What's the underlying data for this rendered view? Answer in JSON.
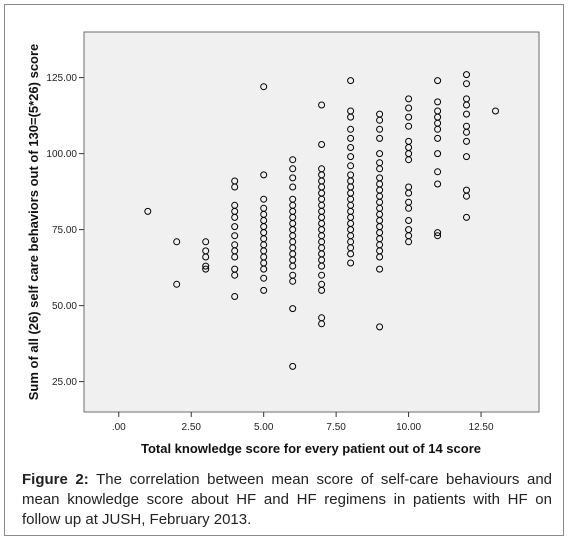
{
  "caption": {
    "label": "Figure 2:",
    "text": " The correlation between mean score of self-care behaviours and mean knowledge score about HF and HF regimens in patients with HF on follow up at JUSH, February 2013."
  },
  "colors": {
    "plot_background": "#f0f0f0",
    "marker": "#000000",
    "frame": "#8a8a8a"
  },
  "chart_data": {
    "type": "scatter",
    "title": "",
    "xlabel": "Total knowledge score for every patient out of 14 score",
    "ylabel": "Sum of all (26) self care behaviors out of 130=(5*26) score",
    "xlim": [
      -1.2,
      14.5
    ],
    "ylim": [
      15,
      140
    ],
    "x_ticks": [
      0,
      2.5,
      5,
      7.5,
      10,
      12.5
    ],
    "x_tick_labels": [
      ".00",
      "2.50",
      "5.00",
      "7.50",
      "10.00",
      "12.50"
    ],
    "y_ticks": [
      25,
      50,
      75,
      100,
      125
    ],
    "y_tick_labels": [
      "25.00",
      "50.00",
      "75.00",
      "100.00",
      "125.00"
    ],
    "grid": false,
    "marker": "open-circle",
    "points": [
      [
        1,
        81
      ],
      [
        2,
        71
      ],
      [
        2,
        57
      ],
      [
        3,
        71
      ],
      [
        3,
        68
      ],
      [
        3,
        66
      ],
      [
        3,
        63
      ],
      [
        3,
        62
      ],
      [
        4,
        91
      ],
      [
        4,
        89
      ],
      [
        4,
        83
      ],
      [
        4,
        81
      ],
      [
        4,
        79
      ],
      [
        4,
        76
      ],
      [
        4,
        73
      ],
      [
        4,
        70
      ],
      [
        4,
        68
      ],
      [
        4,
        66
      ],
      [
        4,
        62
      ],
      [
        4,
        60
      ],
      [
        4,
        53
      ],
      [
        5,
        122
      ],
      [
        5,
        93
      ],
      [
        5,
        85
      ],
      [
        5,
        82
      ],
      [
        5,
        80
      ],
      [
        5,
        78
      ],
      [
        5,
        76
      ],
      [
        5,
        74
      ],
      [
        5,
        72
      ],
      [
        5,
        70
      ],
      [
        5,
        68
      ],
      [
        5,
        66
      ],
      [
        5,
        64
      ],
      [
        5,
        62
      ],
      [
        5,
        59
      ],
      [
        5,
        55
      ],
      [
        6,
        98
      ],
      [
        6,
        95
      ],
      [
        6,
        92
      ],
      [
        6,
        89
      ],
      [
        6,
        85
      ],
      [
        6,
        83
      ],
      [
        6,
        81
      ],
      [
        6,
        79
      ],
      [
        6,
        77
      ],
      [
        6,
        75
      ],
      [
        6,
        73
      ],
      [
        6,
        71
      ],
      [
        6,
        69
      ],
      [
        6,
        67
      ],
      [
        6,
        65
      ],
      [
        6,
        63
      ],
      [
        6,
        60
      ],
      [
        6,
        58
      ],
      [
        6,
        49
      ],
      [
        6,
        30
      ],
      [
        7,
        116
      ],
      [
        7,
        103
      ],
      [
        7,
        95
      ],
      [
        7,
        93
      ],
      [
        7,
        91
      ],
      [
        7,
        89
      ],
      [
        7,
        87
      ],
      [
        7,
        85
      ],
      [
        7,
        83
      ],
      [
        7,
        81
      ],
      [
        7,
        79
      ],
      [
        7,
        77
      ],
      [
        7,
        75
      ],
      [
        7,
        73
      ],
      [
        7,
        71
      ],
      [
        7,
        69
      ],
      [
        7,
        67
      ],
      [
        7,
        65
      ],
      [
        7,
        63
      ],
      [
        7,
        60
      ],
      [
        7,
        57
      ],
      [
        7,
        55
      ],
      [
        7,
        46
      ],
      [
        7,
        44
      ],
      [
        8,
        124
      ],
      [
        8,
        114
      ],
      [
        8,
        112
      ],
      [
        8,
        108
      ],
      [
        8,
        105
      ],
      [
        8,
        102
      ],
      [
        8,
        99
      ],
      [
        8,
        96
      ],
      [
        8,
        93
      ],
      [
        8,
        91
      ],
      [
        8,
        89
      ],
      [
        8,
        87
      ],
      [
        8,
        85
      ],
      [
        8,
        83
      ],
      [
        8,
        81
      ],
      [
        8,
        79
      ],
      [
        8,
        77
      ],
      [
        8,
        75
      ],
      [
        8,
        73
      ],
      [
        8,
        71
      ],
      [
        8,
        69
      ],
      [
        8,
        67
      ],
      [
        8,
        64
      ],
      [
        9,
        113
      ],
      [
        9,
        111
      ],
      [
        9,
        108
      ],
      [
        9,
        105
      ],
      [
        9,
        100
      ],
      [
        9,
        97
      ],
      [
        9,
        95
      ],
      [
        9,
        92
      ],
      [
        9,
        90
      ],
      [
        9,
        88
      ],
      [
        9,
        86
      ],
      [
        9,
        84
      ],
      [
        9,
        82
      ],
      [
        9,
        80
      ],
      [
        9,
        78
      ],
      [
        9,
        76
      ],
      [
        9,
        74
      ],
      [
        9,
        72
      ],
      [
        9,
        70
      ],
      [
        9,
        68
      ],
      [
        9,
        66
      ],
      [
        9,
        62
      ],
      [
        9,
        43
      ],
      [
        10,
        118
      ],
      [
        10,
        115
      ],
      [
        10,
        112
      ],
      [
        10,
        109
      ],
      [
        10,
        104
      ],
      [
        10,
        102
      ],
      [
        10,
        100
      ],
      [
        10,
        98
      ],
      [
        10,
        89
      ],
      [
        10,
        87
      ],
      [
        10,
        84
      ],
      [
        10,
        82
      ],
      [
        10,
        78
      ],
      [
        10,
        75
      ],
      [
        10,
        73
      ],
      [
        10,
        71
      ],
      [
        11,
        124
      ],
      [
        11,
        117
      ],
      [
        11,
        114
      ],
      [
        11,
        112
      ],
      [
        11,
        110
      ],
      [
        11,
        108
      ],
      [
        11,
        105
      ],
      [
        11,
        100
      ],
      [
        11,
        94
      ],
      [
        11,
        90
      ],
      [
        11,
        74
      ],
      [
        11,
        73
      ],
      [
        12,
        126
      ],
      [
        12,
        123
      ],
      [
        12,
        118
      ],
      [
        12,
        116
      ],
      [
        12,
        113
      ],
      [
        12,
        109
      ],
      [
        12,
        107
      ],
      [
        12,
        104
      ],
      [
        12,
        99
      ],
      [
        12,
        88
      ],
      [
        12,
        86
      ],
      [
        12,
        79
      ],
      [
        13,
        114
      ]
    ]
  }
}
